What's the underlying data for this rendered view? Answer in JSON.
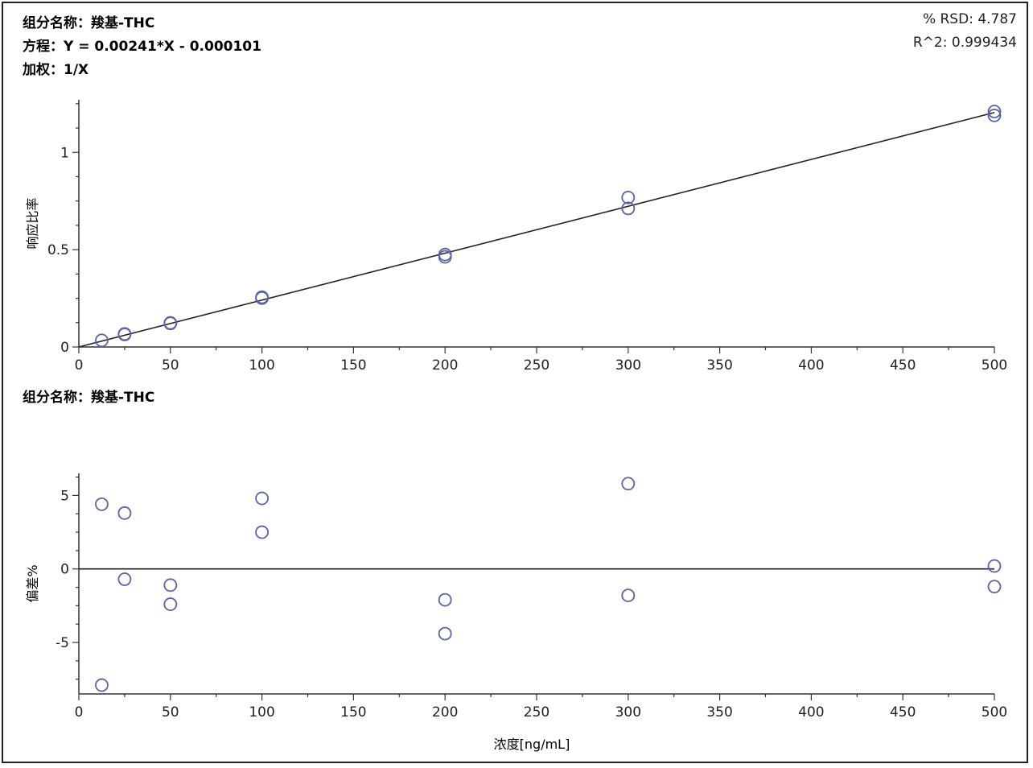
{
  "header": {
    "component_label": "组分名称：羧基-THC",
    "equation_label": "方程：Y = 0.00241*X - 0.000101",
    "weighting_label": "加权：1/X",
    "rsd_label": "% RSD: 4.787",
    "r2_label": "R^2: 0.999434"
  },
  "residual_header": {
    "component_label": "组分名称：羧基-THC"
  },
  "colors": {
    "marker": "#5b63a8",
    "line": "#222222",
    "axis": "#333333"
  },
  "chart_data": [
    {
      "type": "scatter",
      "title": "",
      "xlabel": "",
      "ylabel": "响应比率",
      "xlim": [
        0,
        500
      ],
      "ylim": [
        0,
        1.27
      ],
      "xticks": [
        0,
        50,
        100,
        150,
        200,
        250,
        300,
        350,
        400,
        450,
        500
      ],
      "xtick_labels": [
        "0",
        "50",
        "100",
        "150",
        "200",
        "250",
        "300",
        "350",
        "400",
        "450",
        "500"
      ],
      "yticks": [
        0,
        0.5,
        1
      ],
      "ytick_labels": [
        "0",
        "0.5",
        "1"
      ],
      "series": [
        {
          "points": [
            {
              "x": 12.5,
              "y": 0.034
            },
            {
              "x": 25,
              "y": 0.064
            },
            {
              "x": 25,
              "y": 0.067
            },
            {
              "x": 50,
              "y": 0.121
            },
            {
              "x": 50,
              "y": 0.124
            },
            {
              "x": 100,
              "y": 0.251
            },
            {
              "x": 100,
              "y": 0.256
            },
            {
              "x": 200,
              "y": 0.463
            },
            {
              "x": 200,
              "y": 0.475
            },
            {
              "x": 300,
              "y": 0.712
            },
            {
              "x": 300,
              "y": 0.768
            },
            {
              "x": 500,
              "y": 1.19
            },
            {
              "x": 500,
              "y": 1.21
            }
          ]
        }
      ],
      "fit_line": {
        "slope": 0.00241,
        "intercept": -0.000101,
        "x_range": [
          0,
          500
        ]
      },
      "grid": false
    },
    {
      "type": "scatter",
      "title": "",
      "xlabel": "浓度[ng/mL]",
      "ylabel": "偏差%",
      "xlim": [
        0,
        500
      ],
      "ylim": [
        -8.5,
        6.5
      ],
      "xticks": [
        0,
        50,
        100,
        150,
        200,
        250,
        300,
        350,
        400,
        450,
        500
      ],
      "xtick_labels": [
        "0",
        "50",
        "100",
        "150",
        "200",
        "250",
        "300",
        "350",
        "400",
        "450",
        "500"
      ],
      "yticks": [
        -5,
        0,
        5
      ],
      "ytick_labels": [
        "-5",
        "0",
        "5"
      ],
      "series": [
        {
          "points": [
            {
              "x": 12.5,
              "y": 4.4
            },
            {
              "x": 12.5,
              "y": -7.9
            },
            {
              "x": 25,
              "y": 3.8
            },
            {
              "x": 25,
              "y": -0.7
            },
            {
              "x": 50,
              "y": -1.1
            },
            {
              "x": 50,
              "y": -2.4
            },
            {
              "x": 100,
              "y": 4.8
            },
            {
              "x": 100,
              "y": 2.5
            },
            {
              "x": 200,
              "y": -2.1
            },
            {
              "x": 200,
              "y": -4.4
            },
            {
              "x": 300,
              "y": 5.8
            },
            {
              "x": 300,
              "y": -1.8
            },
            {
              "x": 500,
              "y": 0.2
            },
            {
              "x": 500,
              "y": -1.2
            }
          ]
        }
      ],
      "reference_line": {
        "y": 0
      },
      "grid": false
    }
  ]
}
